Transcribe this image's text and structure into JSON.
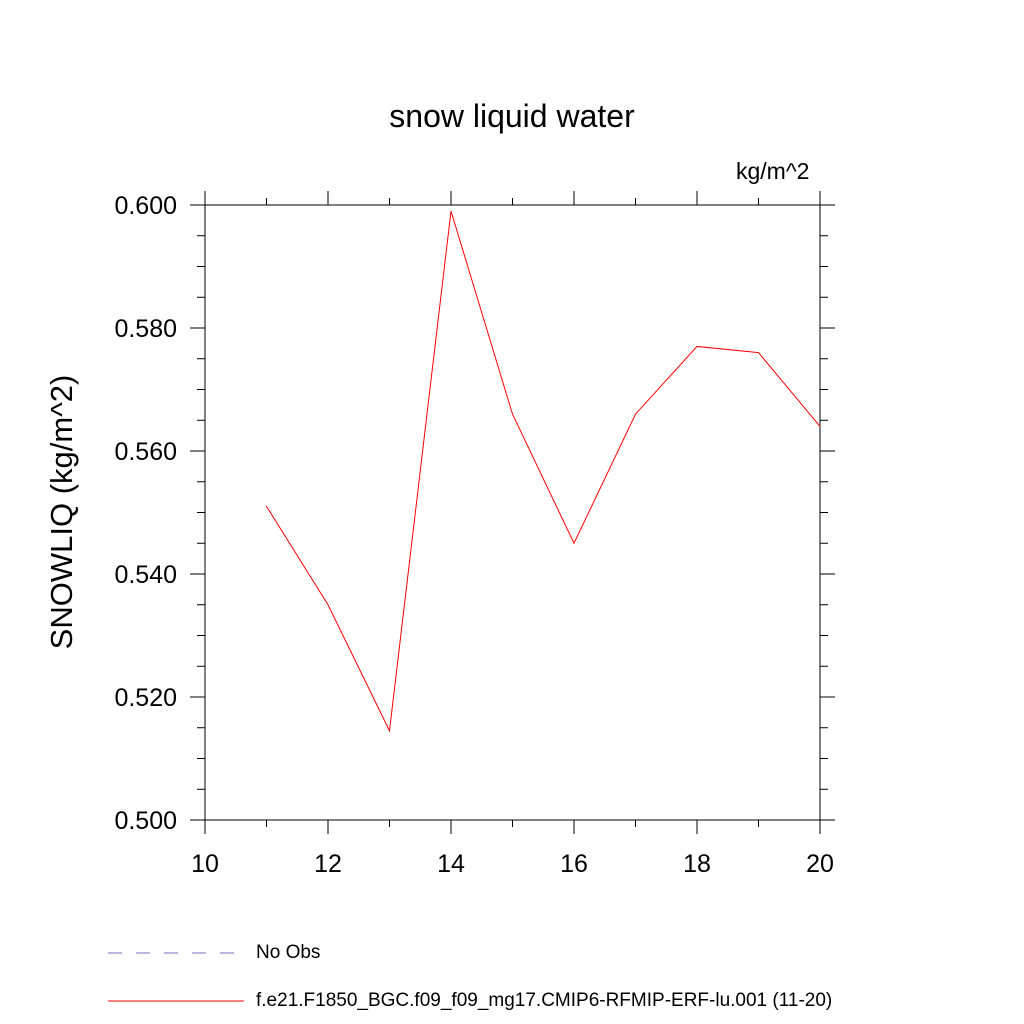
{
  "chart_data": {
    "type": "line",
    "title": "snow liquid water",
    "unit_label": "kg/m^2",
    "ylabel": "SNOWLIQ  (kg/m^2)",
    "xlabel": "",
    "xlim": [
      10,
      20
    ],
    "ylim": [
      0.5,
      0.6
    ],
    "x_ticks": [
      "10",
      "12",
      "14",
      "16",
      "18",
      "20"
    ],
    "y_ticks": [
      "0.500",
      "0.520",
      "0.540",
      "0.560",
      "0.580",
      "0.600"
    ],
    "grid": false,
    "series": [
      {
        "name": "f.e21.F1850_BGC.f09_f09_mg17.CMIP6-RFMIP-ERF-lu.001 (11-20)",
        "color": "#ff0000",
        "x": [
          11,
          12,
          13,
          14,
          15,
          16,
          17,
          18,
          19,
          20
        ],
        "values": [
          0.551,
          0.535,
          0.5145,
          0.599,
          0.566,
          0.545,
          0.566,
          0.577,
          0.576,
          0.564
        ]
      }
    ],
    "legend": [
      {
        "label": "No Obs",
        "color": "#6f6fbf",
        "style": "dashed"
      },
      {
        "label": "f.e21.F1850_BGC.f09_f09_mg17.CMIP6-RFMIP-ERF-lu.001 (11-20)",
        "color": "#ff0000",
        "style": "solid"
      }
    ],
    "legend_placement": "bottom-left"
  }
}
